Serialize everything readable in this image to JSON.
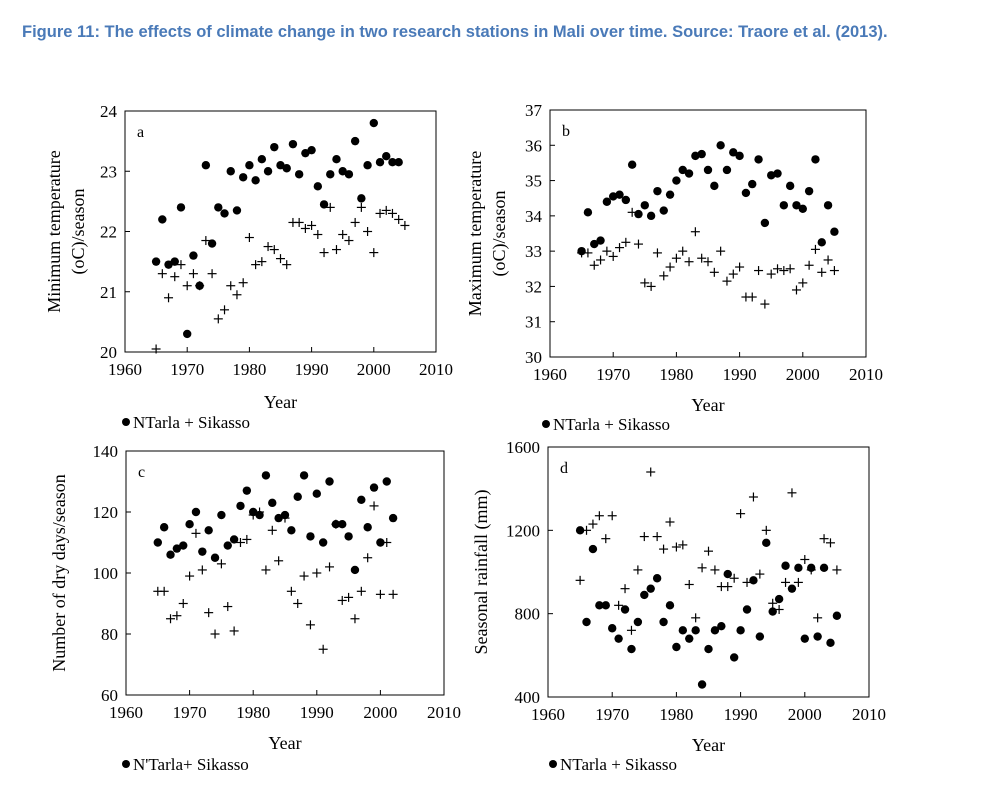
{
  "caption": "Figure 11: The effects of climate change in two research stations in Mali over time. Source: Traore et al. (2013).",
  "chart_data": [
    {
      "type": "scatter",
      "panel": "a",
      "xlabel": "Year",
      "ylabel": [
        "Minimum temperature",
        "(oC)/season"
      ],
      "xlim": [
        1960,
        2010
      ],
      "ylim": [
        20,
        24
      ],
      "xticks": [
        "1960",
        "1970",
        "1980",
        "1990",
        "2000",
        "2010"
      ],
      "yticks": [
        "20",
        "21",
        "22",
        "23",
        "24"
      ],
      "grid": false,
      "legend": {
        "text": "NTarla + Sikasso",
        "placement": "bottom-left"
      },
      "series": [
        {
          "name": "NTarla",
          "marker": "dot",
          "x": [
            1965,
            1966,
            1967,
            1968,
            1969,
            1970,
            1971,
            1972,
            1973,
            1974,
            1975,
            1976,
            1977,
            1978,
            1979,
            1980,
            1981,
            1982,
            1983,
            1984,
            1985,
            1986,
            1987,
            1988,
            1989,
            1990,
            1991,
            1992,
            1993,
            1994,
            1995,
            1996,
            1997,
            1998,
            1999,
            2000,
            2001,
            2002,
            2003,
            2004
          ],
          "y": [
            21.5,
            22.2,
            21.45,
            21.5,
            22.4,
            20.3,
            21.6,
            21.1,
            23.1,
            21.8,
            22.4,
            22.3,
            23.0,
            22.35,
            22.9,
            23.1,
            22.85,
            23.2,
            23.0,
            23.4,
            23.1,
            23.05,
            23.45,
            22.95,
            23.3,
            23.35,
            22.75,
            22.45,
            22.95,
            23.2,
            23.0,
            22.95,
            23.5,
            22.55,
            23.1,
            23.8,
            23.15,
            23.25,
            23.15,
            23.15
          ]
        },
        {
          "name": "Sikasso",
          "marker": "cross",
          "x": [
            1965,
            1966,
            1967,
            1968,
            1969,
            1970,
            1971,
            1972,
            1973,
            1974,
            1975,
            1976,
            1977,
            1978,
            1979,
            1980,
            1981,
            1982,
            1983,
            1984,
            1985,
            1986,
            1987,
            1988,
            1989,
            1990,
            1991,
            1992,
            1993,
            1994,
            1995,
            1996,
            1997,
            1998,
            1999,
            2000,
            2001,
            2002,
            2003,
            2004,
            2005
          ],
          "y": [
            20.05,
            21.3,
            20.9,
            21.25,
            21.45,
            21.1,
            21.3,
            21.1,
            21.85,
            21.3,
            20.55,
            20.7,
            21.1,
            20.95,
            21.15,
            21.9,
            21.45,
            21.5,
            21.75,
            21.7,
            21.55,
            21.45,
            22.15,
            22.15,
            22.05,
            22.1,
            21.95,
            21.65,
            22.4,
            21.7,
            21.95,
            21.85,
            22.15,
            22.4,
            22.0,
            21.65,
            22.3,
            22.35,
            22.3,
            22.2,
            22.1
          ]
        }
      ]
    },
    {
      "type": "scatter",
      "panel": "b",
      "xlabel": "Year",
      "ylabel": [
        "Maximum temperature",
        "(oC)/season"
      ],
      "xlim": [
        1960,
        2010
      ],
      "ylim": [
        30,
        37
      ],
      "xticks": [
        "1960",
        "1970",
        "1980",
        "1990",
        "2000",
        "2010"
      ],
      "yticks": [
        "30",
        "31",
        "32",
        "33",
        "34",
        "35",
        "36",
        "37"
      ],
      "grid": false,
      "legend": {
        "text": "NTarla + Sikasso",
        "placement": "bottom-left"
      },
      "series": [
        {
          "name": "NTarla",
          "marker": "dot",
          "x": [
            1965,
            1966,
            1967,
            1968,
            1969,
            1970,
            1971,
            1972,
            1973,
            1974,
            1975,
            1976,
            1977,
            1978,
            1979,
            1980,
            1981,
            1982,
            1983,
            1984,
            1985,
            1986,
            1987,
            1988,
            1989,
            1990,
            1991,
            1992,
            1993,
            1994,
            1995,
            1996,
            1997,
            1998,
            1999,
            2000,
            2001,
            2002,
            2003,
            2004,
            2005
          ],
          "y": [
            33.0,
            34.1,
            33.2,
            33.3,
            34.4,
            34.55,
            34.6,
            34.45,
            35.45,
            34.05,
            34.3,
            34.0,
            34.7,
            34.15,
            34.6,
            35.0,
            35.3,
            35.2,
            35.7,
            35.75,
            35.3,
            34.85,
            36.0,
            35.3,
            35.8,
            35.7,
            34.65,
            34.9,
            35.6,
            33.8,
            35.15,
            35.2,
            34.3,
            34.85,
            34.3,
            34.2,
            34.7,
            35.6,
            33.25,
            34.3,
            33.55
          ]
        },
        {
          "name": "Sikasso",
          "marker": "cross",
          "x": [
            1965,
            1966,
            1967,
            1968,
            1969,
            1970,
            1971,
            1972,
            1973,
            1974,
            1975,
            1976,
            1977,
            1978,
            1979,
            1980,
            1981,
            1982,
            1983,
            1984,
            1985,
            1986,
            1987,
            1988,
            1989,
            1990,
            1991,
            1992,
            1993,
            1994,
            1995,
            1996,
            1997,
            1998,
            1999,
            2000,
            2001,
            2002,
            2003,
            2004,
            2005
          ],
          "y": [
            32.95,
            32.95,
            32.6,
            32.75,
            33.0,
            32.85,
            33.1,
            33.25,
            34.1,
            33.2,
            32.1,
            32.0,
            32.95,
            32.3,
            32.55,
            32.8,
            33.0,
            32.7,
            33.55,
            32.8,
            32.7,
            32.4,
            33.0,
            32.15,
            32.35,
            32.55,
            31.7,
            31.7,
            32.45,
            31.5,
            32.35,
            32.5,
            32.45,
            32.5,
            31.9,
            32.1,
            32.6,
            33.05,
            32.4,
            32.75,
            32.45
          ]
        }
      ]
    },
    {
      "type": "scatter",
      "panel": "c",
      "xlabel": "Year",
      "ylabel": [
        "Number of dry days/season"
      ],
      "xlim": [
        1960,
        2010
      ],
      "ylim": [
        60,
        140
      ],
      "xticks": [
        "1960",
        "1970",
        "1980",
        "1990",
        "2000",
        "2010"
      ],
      "yticks": [
        "60",
        "80",
        "100",
        "120",
        "140"
      ],
      "grid": false,
      "legend": {
        "text": "N'Tarla+ Sikasso",
        "placement": "bottom-left"
      },
      "series": [
        {
          "name": "N'Tarla",
          "marker": "dot",
          "x": [
            1965,
            1966,
            1967,
            1968,
            1969,
            1970,
            1971,
            1972,
            1973,
            1974,
            1975,
            1976,
            1977,
            1978,
            1979,
            1980,
            1981,
            1982,
            1983,
            1984,
            1985,
            1986,
            1987,
            1988,
            1989,
            1990,
            1991,
            1992,
            1993,
            1994,
            1995,
            1996,
            1997,
            1998,
            1999,
            2000,
            2001,
            2002
          ],
          "y": [
            110,
            115,
            106,
            108,
            109,
            116,
            120,
            107,
            114,
            105,
            119,
            109,
            111,
            122,
            127,
            120,
            119,
            132,
            123,
            118,
            119,
            114,
            125,
            132,
            112,
            126,
            110,
            130,
            116,
            116,
            112,
            101,
            124,
            115,
            128,
            110,
            130,
            118
          ]
        },
        {
          "name": "Sikasso",
          "marker": "cross",
          "x": [
            1965,
            1966,
            1967,
            1968,
            1969,
            1970,
            1971,
            1972,
            1973,
            1974,
            1975,
            1976,
            1977,
            1978,
            1979,
            1980,
            1981,
            1982,
            1983,
            1984,
            1985,
            1986,
            1987,
            1988,
            1989,
            1990,
            1991,
            1992,
            1993,
            1994,
            1995,
            1996,
            1997,
            1998,
            1999,
            2000,
            2001,
            2002
          ],
          "y": [
            94,
            94,
            85,
            86,
            90,
            99,
            113,
            101,
            87,
            80,
            103,
            89,
            81,
            110,
            111,
            119,
            120,
            101,
            114,
            104,
            118,
            94,
            90,
            99,
            83,
            100,
            75,
            102,
            116,
            91,
            92,
            85,
            94,
            105,
            122,
            93,
            110,
            93
          ]
        }
      ]
    },
    {
      "type": "scatter",
      "panel": "d",
      "xlabel": "Year",
      "ylabel": [
        "Seasonal  rainfall (mm)"
      ],
      "xlim": [
        1960,
        2010
      ],
      "ylim": [
        400,
        1600
      ],
      "xticks": [
        "1960",
        "1970",
        "1980",
        "1990",
        "2000",
        "2010"
      ],
      "yticks": [
        "400",
        "800",
        "1200",
        "1600"
      ],
      "grid": false,
      "legend": {
        "text": "NTarla  + Sikasso",
        "placement": "bottom-left"
      },
      "series": [
        {
          "name": "NTarla",
          "marker": "dot",
          "x": [
            1965,
            1966,
            1967,
            1968,
            1969,
            1970,
            1971,
            1972,
            1973,
            1974,
            1975,
            1976,
            1977,
            1978,
            1979,
            1980,
            1981,
            1982,
            1983,
            1984,
            1985,
            1986,
            1987,
            1988,
            1989,
            1990,
            1991,
            1992,
            1993,
            1994,
            1995,
            1996,
            1997,
            1998,
            1999,
            2000,
            2001,
            2002,
            2003,
            2004,
            2005
          ],
          "y": [
            1200,
            760,
            1110,
            840,
            840,
            730,
            680,
            820,
            630,
            760,
            890,
            920,
            970,
            760,
            840,
            640,
            720,
            680,
            720,
            460,
            630,
            720,
            740,
            990,
            590,
            720,
            820,
            960,
            690,
            1140,
            810,
            870,
            1030,
            920,
            1020,
            680,
            1020,
            690,
            1020,
            660,
            790
          ]
        },
        {
          "name": "Sikasso",
          "marker": "cross",
          "x": [
            1965,
            1966,
            1967,
            1968,
            1969,
            1970,
            1971,
            1972,
            1973,
            1974,
            1975,
            1976,
            1977,
            1978,
            1979,
            1980,
            1981,
            1982,
            1983,
            1984,
            1985,
            1986,
            1987,
            1988,
            1989,
            1990,
            1991,
            1992,
            1993,
            1994,
            1995,
            1996,
            1997,
            1998,
            1999,
            2000,
            2001,
            2002,
            2003,
            2004,
            2005
          ],
          "y": [
            960,
            1200,
            1230,
            1270,
            1160,
            1270,
            840,
            920,
            720,
            1010,
            1170,
            1480,
            1170,
            1110,
            1240,
            1120,
            1130,
            940,
            780,
            1020,
            1100,
            1010,
            930,
            930,
            970,
            1280,
            950,
            1360,
            990,
            1200,
            850,
            820,
            950,
            1380,
            950,
            1060,
            1010,
            780,
            1160,
            1140,
            1010
          ]
        }
      ]
    }
  ]
}
